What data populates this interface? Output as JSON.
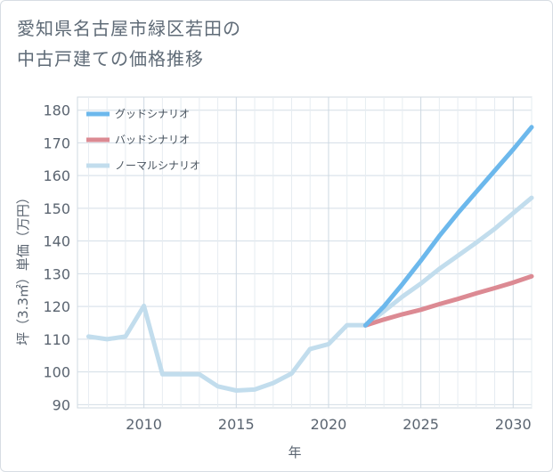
{
  "title": {
    "line1": "愛知県名古屋市緑区若田の",
    "line2": "中古戸建ての価格推移"
  },
  "chart_data": {
    "type": "line",
    "title": "愛知県名古屋市緑区若田の中古戸建ての価格推移",
    "xlabel": "年",
    "ylabel": "坪（3.3㎡）単価（万円）",
    "xlim": [
      2006.4,
      2031
    ],
    "ylim": [
      89,
      184
    ],
    "x_ticks": [
      2010,
      2015,
      2020,
      2025,
      2030
    ],
    "y_ticks": [
      90,
      100,
      110,
      120,
      130,
      140,
      150,
      160,
      170,
      180
    ],
    "grid": true,
    "legend_position": "top-left",
    "series": [
      {
        "name": "グッドシナリオ",
        "color": "#6cb8ec",
        "x": [
          2022,
          2023,
          2024,
          2025,
          2026,
          2027,
          2028,
          2029,
          2030,
          2031
        ],
        "values": [
          114.2,
          120.0,
          126.8,
          134.0,
          141.5,
          148.5,
          155.0,
          161.5,
          168.0,
          174.8
        ]
      },
      {
        "name": "バッドシナリオ",
        "color": "#dc8a93",
        "x": [
          2022,
          2023,
          2024,
          2025,
          2026,
          2027,
          2028,
          2029,
          2030,
          2031
        ],
        "values": [
          114.2,
          116.0,
          117.6,
          119.0,
          120.7,
          122.3,
          124.0,
          125.6,
          127.3,
          129.2
        ]
      },
      {
        "name": "ノーマルシナリオ",
        "color": "#c2dded",
        "x": [
          2007,
          2008,
          2009,
          2010,
          2011,
          2012,
          2013,
          2014,
          2015,
          2016,
          2017,
          2018,
          2019,
          2020,
          2021,
          2022,
          2023,
          2024,
          2025,
          2026,
          2027,
          2028,
          2029,
          2030,
          2031
        ],
        "values": [
          110.8,
          110.0,
          110.8,
          120.2,
          99.3,
          99.3,
          99.3,
          95.6,
          94.3,
          94.6,
          96.6,
          99.5,
          107.0,
          108.5,
          114.3,
          114.3,
          118.5,
          123.0,
          127.0,
          131.5,
          135.5,
          139.5,
          143.7,
          148.5,
          153.2
        ]
      }
    ]
  }
}
